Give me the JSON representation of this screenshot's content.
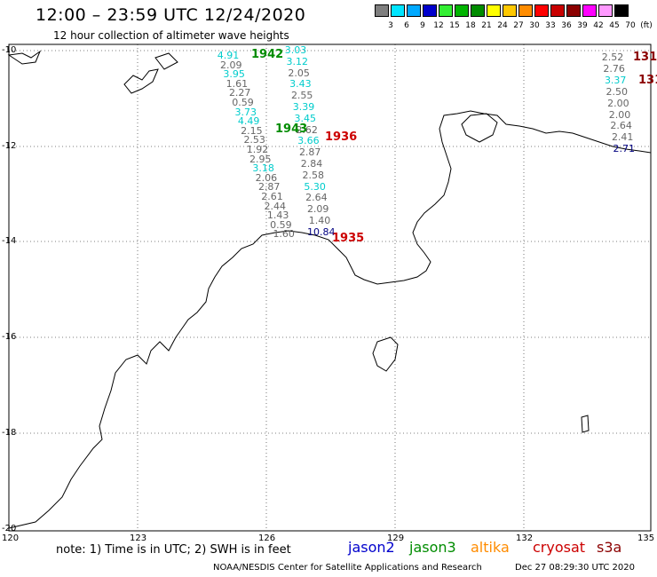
{
  "header": {
    "title": "12:00 – 23:59 UTC 12/24/2020",
    "subtitle": "12 hour collection of altimeter wave heights"
  },
  "color_scale": {
    "labels": [
      "3",
      "6",
      "9",
      "12",
      "15",
      "18",
      "21",
      "24",
      "27",
      "30",
      "33",
      "36",
      "39",
      "42",
      "45",
      "70",
      "(ft)"
    ],
    "colors": [
      "#7f7f7f",
      "#00e5ff",
      "#00a9ff",
      "#0000cc",
      "#33ee33",
      "#00b400",
      "#008c00",
      "#ffff00",
      "#ffc800",
      "#ff8c00",
      "#ff0000",
      "#c80000",
      "#8b0000",
      "#ff00ff",
      "#ff99ff",
      "#000000"
    ]
  },
  "axes": {
    "lat_labels": [
      "-10",
      "-12",
      "-14",
      "-16",
      "-18",
      "-20"
    ],
    "lon_labels": [
      "120",
      "123",
      "126",
      "129",
      "132",
      "135"
    ]
  },
  "tracks": {
    "track_a": [
      "4.91",
      "2.09",
      "3.95",
      "1.61",
      "2.27",
      "0.59",
      "3.73",
      "4.49",
      "2.15",
      "2.53",
      "1.92",
      "2.95",
      "3.18",
      "2.06",
      "2.87",
      "2.61",
      "2.44",
      "1.43",
      "0.59",
      "1.60"
    ],
    "track_a_colors": [
      "#00cccc",
      "#666",
      "#00cccc",
      "#666",
      "#666",
      "#666",
      "#00cccc",
      "#00cccc",
      "#666",
      "#666",
      "#666",
      "#666",
      "#00cccc",
      "#666",
      "#666",
      "#666",
      "#666",
      "#666",
      "#666",
      "#666"
    ],
    "track_b": [
      "3.03",
      "3.12",
      "2.05",
      "3.43",
      "2.55",
      "3.39",
      "3.45",
      "2.62",
      "3.66",
      "2.87",
      "2.84",
      "2.58",
      "5.30",
      "2.64",
      "2.09",
      "1.40",
      "10.84"
    ],
    "track_b_colors": [
      "#00cccc",
      "#00cccc",
      "#666",
      "#00cccc",
      "#666",
      "#00cccc",
      "#00cccc",
      "#666",
      "#00cccc",
      "#666",
      "#666",
      "#666",
      "#00cccc",
      "#666",
      "#666",
      "#666",
      "#000080"
    ],
    "track_c": [
      "2.52",
      "2.76",
      "3.37",
      "2.50",
      "2.00",
      "2.00",
      "2.64",
      "2.41",
      "2.71"
    ],
    "track_c_colors": [
      "#666",
      "#666",
      "#00cccc",
      "#666",
      "#666",
      "#666",
      "#666",
      "#666",
      "#000080"
    ]
  },
  "pass_labels": [
    {
      "text": "1942",
      "color": "#008c00"
    },
    {
      "text": "1943",
      "color": "#008c00"
    },
    {
      "text": "1936",
      "color": "#cc0000"
    },
    {
      "text": "1935",
      "color": "#cc0000"
    },
    {
      "text": "131",
      "color": "#8b0000"
    },
    {
      "text": "131",
      "color": "#8b0000"
    }
  ],
  "footer": {
    "note": "note:  1) Time is in UTC;  2) SWH is in feet",
    "legend": [
      {
        "text": "jason2",
        "color": "#0000cc"
      },
      {
        "text": "jason3",
        "color": "#008c00"
      },
      {
        "text": "altika",
        "color": "#ff8c00"
      },
      {
        "text": "cryosat",
        "color": "#cc0000"
      },
      {
        "text": "s3a",
        "color": "#8b0000"
      }
    ],
    "credit": "NOAA/NESDIS Center for Satellite Applications and Research",
    "timestamp": "Dec 27 08:29:30 UTC 2020"
  }
}
